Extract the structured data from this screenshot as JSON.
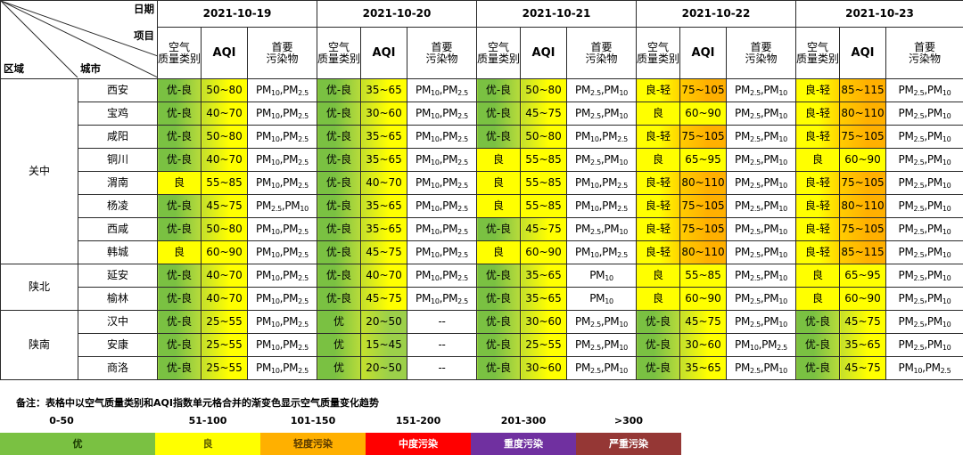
{
  "header": {
    "corner_date": "日期",
    "corner_item": "项目",
    "corner_region": "区域",
    "corner_city": "城市",
    "dates": [
      "2021-10-19",
      "2021-10-20",
      "2021-10-21",
      "2021-10-22",
      "2021-10-23"
    ],
    "col_category": "空气\n质量类别",
    "col_aqi": "AQI",
    "col_pollutant": "首要\n污染物"
  },
  "regions": [
    {
      "name": "关中",
      "rows": 8
    },
    {
      "name": "陕北",
      "rows": 2
    },
    {
      "name": "陕南",
      "rows": 3
    }
  ],
  "cities": [
    {
      "name": "西安",
      "days": [
        {
          "cat": "优-良",
          "aqi": "50~80",
          "pol": "PM10,PM2.5"
        },
        {
          "cat": "优-良",
          "aqi": "35~65",
          "pol": "PM10,PM2.5"
        },
        {
          "cat": "优-良",
          "aqi": "50~80",
          "pol": "PM2.5,PM10"
        },
        {
          "cat": "良-轻",
          "aqi": "75~105",
          "pol": "PM2.5,PM10"
        },
        {
          "cat": "良-轻",
          "aqi": "85~115",
          "pol": "PM2.5,PM10"
        }
      ]
    },
    {
      "name": "宝鸡",
      "days": [
        {
          "cat": "优-良",
          "aqi": "40~70",
          "pol": "PM10,PM2.5"
        },
        {
          "cat": "优-良",
          "aqi": "30~60",
          "pol": "PM10,PM2.5"
        },
        {
          "cat": "优-良",
          "aqi": "45~75",
          "pol": "PM2.5,PM10"
        },
        {
          "cat": "良",
          "aqi": "60~90",
          "pol": "PM2.5,PM10"
        },
        {
          "cat": "良-轻",
          "aqi": "80~110",
          "pol": "PM2.5,PM10"
        }
      ]
    },
    {
      "name": "咸阳",
      "days": [
        {
          "cat": "优-良",
          "aqi": "50~80",
          "pol": "PM10,PM2.5"
        },
        {
          "cat": "优-良",
          "aqi": "35~65",
          "pol": "PM10,PM2.5"
        },
        {
          "cat": "优-良",
          "aqi": "50~80",
          "pol": "PM10,PM2.5"
        },
        {
          "cat": "良-轻",
          "aqi": "75~105",
          "pol": "PM2.5,PM10"
        },
        {
          "cat": "良-轻",
          "aqi": "75~105",
          "pol": "PM2.5,PM10"
        }
      ]
    },
    {
      "name": "铜川",
      "days": [
        {
          "cat": "优-良",
          "aqi": "40~70",
          "pol": "PM10,PM2.5"
        },
        {
          "cat": "优-良",
          "aqi": "35~65",
          "pol": "PM10,PM2.5"
        },
        {
          "cat": "良",
          "aqi": "55~85",
          "pol": "PM2.5,PM10"
        },
        {
          "cat": "良",
          "aqi": "65~95",
          "pol": "PM2.5,PM10"
        },
        {
          "cat": "良",
          "aqi": "60~90",
          "pol": "PM2.5,PM10"
        }
      ]
    },
    {
      "name": "渭南",
      "days": [
        {
          "cat": "良",
          "aqi": "55~85",
          "pol": "PM10,PM2.5"
        },
        {
          "cat": "优-良",
          "aqi": "40~70",
          "pol": "PM10,PM2.5"
        },
        {
          "cat": "良",
          "aqi": "55~85",
          "pol": "PM10,PM2.5"
        },
        {
          "cat": "良-轻",
          "aqi": "80~110",
          "pol": "PM2.5,PM10"
        },
        {
          "cat": "良-轻",
          "aqi": "75~105",
          "pol": "PM2.5,PM10"
        }
      ]
    },
    {
      "name": "杨凌",
      "days": [
        {
          "cat": "优-良",
          "aqi": "45~75",
          "pol": "PM2.5,PM10"
        },
        {
          "cat": "优-良",
          "aqi": "35~65",
          "pol": "PM10,PM2.5"
        },
        {
          "cat": "良",
          "aqi": "55~85",
          "pol": "PM10,PM2.5"
        },
        {
          "cat": "良-轻",
          "aqi": "75~105",
          "pol": "PM2.5,PM10"
        },
        {
          "cat": "良-轻",
          "aqi": "80~110",
          "pol": "PM2.5,PM10"
        }
      ]
    },
    {
      "name": "西咸",
      "days": [
        {
          "cat": "优-良",
          "aqi": "50~80",
          "pol": "PM10,PM2.5"
        },
        {
          "cat": "优-良",
          "aqi": "35~65",
          "pol": "PM10,PM2.5"
        },
        {
          "cat": "优-良",
          "aqi": "45~75",
          "pol": "PM2.5,PM10"
        },
        {
          "cat": "良-轻",
          "aqi": "75~105",
          "pol": "PM2.5,PM10"
        },
        {
          "cat": "良-轻",
          "aqi": "75~105",
          "pol": "PM2.5,PM10"
        }
      ]
    },
    {
      "name": "韩城",
      "days": [
        {
          "cat": "良",
          "aqi": "60~90",
          "pol": "PM10,PM2.5"
        },
        {
          "cat": "优-良",
          "aqi": "45~75",
          "pol": "PM10,PM2.5"
        },
        {
          "cat": "良",
          "aqi": "60~90",
          "pol": "PM10,PM2.5"
        },
        {
          "cat": "良-轻",
          "aqi": "80~110",
          "pol": "PM2.5,PM10"
        },
        {
          "cat": "良-轻",
          "aqi": "85~115",
          "pol": "PM2.5,PM10"
        }
      ]
    },
    {
      "name": "延安",
      "days": [
        {
          "cat": "优-良",
          "aqi": "40~70",
          "pol": "PM10,PM2.5"
        },
        {
          "cat": "优-良",
          "aqi": "40~70",
          "pol": "PM10,PM2.5"
        },
        {
          "cat": "优-良",
          "aqi": "35~65",
          "pol": "PM10"
        },
        {
          "cat": "良",
          "aqi": "55~85",
          "pol": "PM2.5,PM10"
        },
        {
          "cat": "良",
          "aqi": "65~95",
          "pol": "PM2.5,PM10"
        }
      ]
    },
    {
      "name": "榆林",
      "days": [
        {
          "cat": "优-良",
          "aqi": "40~70",
          "pol": "PM10,PM2.5"
        },
        {
          "cat": "优-良",
          "aqi": "45~75",
          "pol": "PM10,PM2.5"
        },
        {
          "cat": "优-良",
          "aqi": "35~65",
          "pol": "PM10"
        },
        {
          "cat": "良",
          "aqi": "60~90",
          "pol": "PM2.5,PM10"
        },
        {
          "cat": "良",
          "aqi": "60~90",
          "pol": "PM2.5,PM10"
        }
      ]
    },
    {
      "name": "汉中",
      "days": [
        {
          "cat": "优-良",
          "aqi": "25~55",
          "pol": "PM10,PM2.5"
        },
        {
          "cat": "优",
          "aqi": "20~50",
          "pol": "--"
        },
        {
          "cat": "优-良",
          "aqi": "30~60",
          "pol": "PM2.5,PM10"
        },
        {
          "cat": "优-良",
          "aqi": "45~75",
          "pol": "PM2.5,PM10"
        },
        {
          "cat": "优-良",
          "aqi": "45~75",
          "pol": "PM2.5,PM10"
        }
      ]
    },
    {
      "name": "安康",
      "days": [
        {
          "cat": "优-良",
          "aqi": "25~55",
          "pol": "PM10,PM2.5"
        },
        {
          "cat": "优",
          "aqi": "15~45",
          "pol": "--"
        },
        {
          "cat": "优-良",
          "aqi": "25~55",
          "pol": "PM2.5,PM10"
        },
        {
          "cat": "优-良",
          "aqi": "30~60",
          "pol": "PM10,PM2.5"
        },
        {
          "cat": "优-良",
          "aqi": "35~65",
          "pol": "PM2.5,PM10"
        }
      ]
    },
    {
      "name": "商洛",
      "days": [
        {
          "cat": "优-良",
          "aqi": "25~55",
          "pol": "PM10,PM2.5"
        },
        {
          "cat": "优",
          "aqi": "20~50",
          "pol": "--"
        },
        {
          "cat": "优-良",
          "aqi": "30~60",
          "pol": "PM2.5,PM10"
        },
        {
          "cat": "优-良",
          "aqi": "35~65",
          "pol": "PM2.5,PM10"
        },
        {
          "cat": "优-良",
          "aqi": "45~75",
          "pol": "PM10,PM2.5"
        }
      ]
    }
  ],
  "note": "备注：表格中以空气质量类别和AQI指数单元格合并的渐变色显示空气质量变化趋势",
  "legend": [
    {
      "range": "0-50",
      "label": "优",
      "color": "#7ac142",
      "text_color": "#1a3a00"
    },
    {
      "range": "51-100",
      "label": "良",
      "color": "#ffff00",
      "text_color": "#5a5a00"
    },
    {
      "range": "101-150",
      "label": "轻度污染",
      "color": "#ffb000",
      "text_color": "#5a3a00"
    },
    {
      "range": "151-200",
      "label": "中度污染",
      "color": "#ff0000",
      "text_color": "#ffffff"
    },
    {
      "range": "201-300",
      "label": "重度污染",
      "color": "#7030a0",
      "text_color": "#ffffff"
    },
    {
      "range": ">300",
      "label": "严重污染",
      "color": "#953735",
      "text_color": "#ffffff"
    }
  ]
}
